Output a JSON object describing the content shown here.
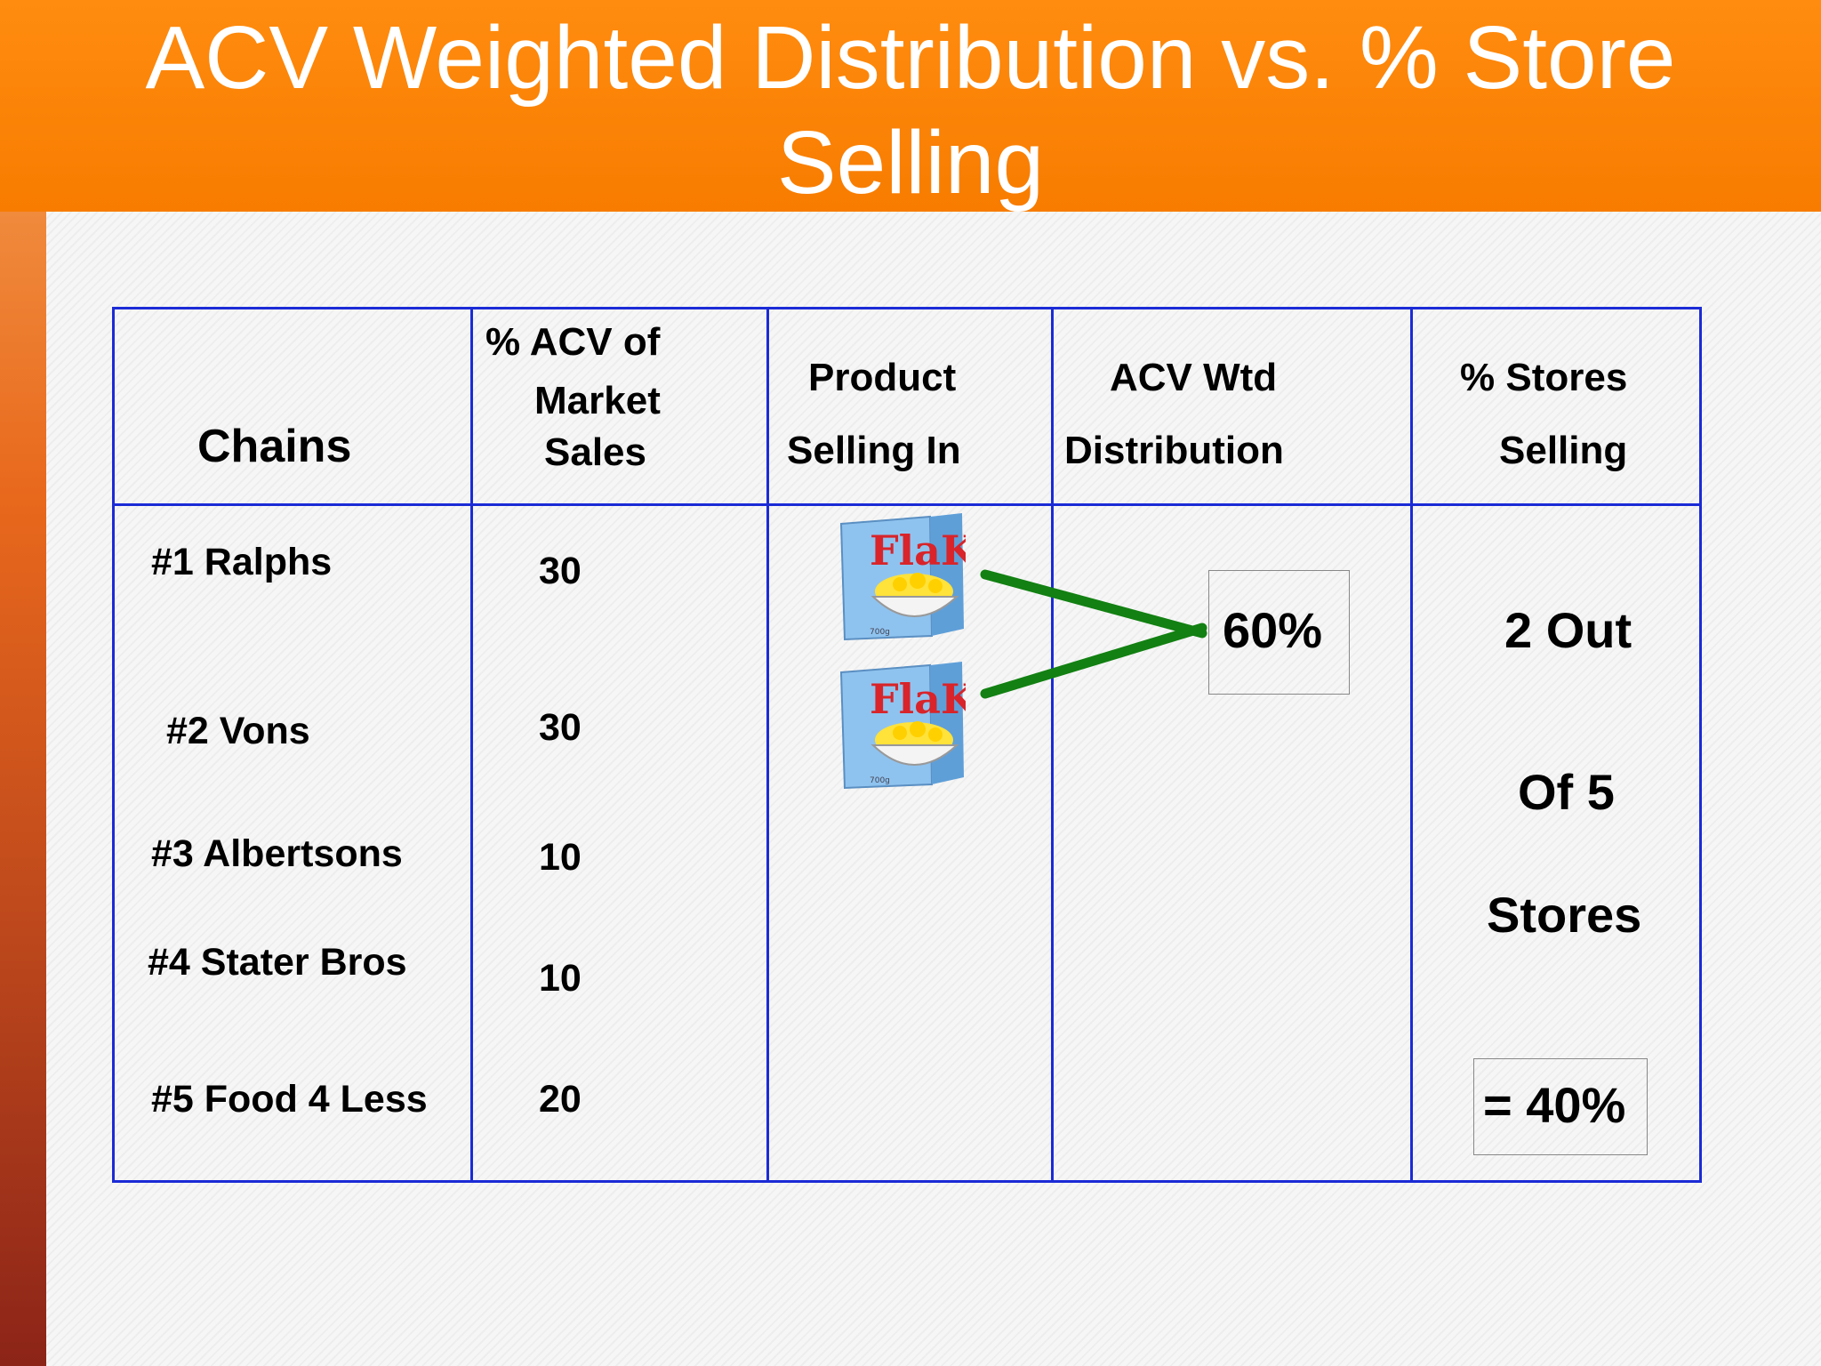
{
  "slide": {
    "title_line1": "ACV Weighted Distribution vs. % Store",
    "title_line2": "Selling"
  },
  "table": {
    "headers": {
      "chains": "Chains",
      "acv_line1": "% ACV of",
      "acv_line2": "Market",
      "acv_line3": "Sales",
      "product_line1": "Product",
      "product_line2": "Selling In",
      "wtd_line1": "ACV Wtd",
      "wtd_line2": "Distribution",
      "stores_line1": "% Stores",
      "stores_line2": "Selling"
    },
    "rows": [
      {
        "chain": "#1 Ralphs",
        "acv": "30"
      },
      {
        "chain": "#2 Vons",
        "acv": "30"
      },
      {
        "chain": "#3 Albertsons",
        "acv": "10"
      },
      {
        "chain": "#4 Stater Bros",
        "acv": "10"
      },
      {
        "chain": "#5 Food 4 Less",
        "acv": "20"
      }
    ],
    "product_label": "FlaKes",
    "product_weight": "700g",
    "acv_wtd_result": "60%",
    "stores_line1": "2 Out",
    "stores_line2": "Of 5",
    "stores_line3": "Stores",
    "stores_result": "= 40%"
  },
  "colors": {
    "title_bg": "#f77c00",
    "grid": "#1b2bd6",
    "connector": "#128012"
  }
}
